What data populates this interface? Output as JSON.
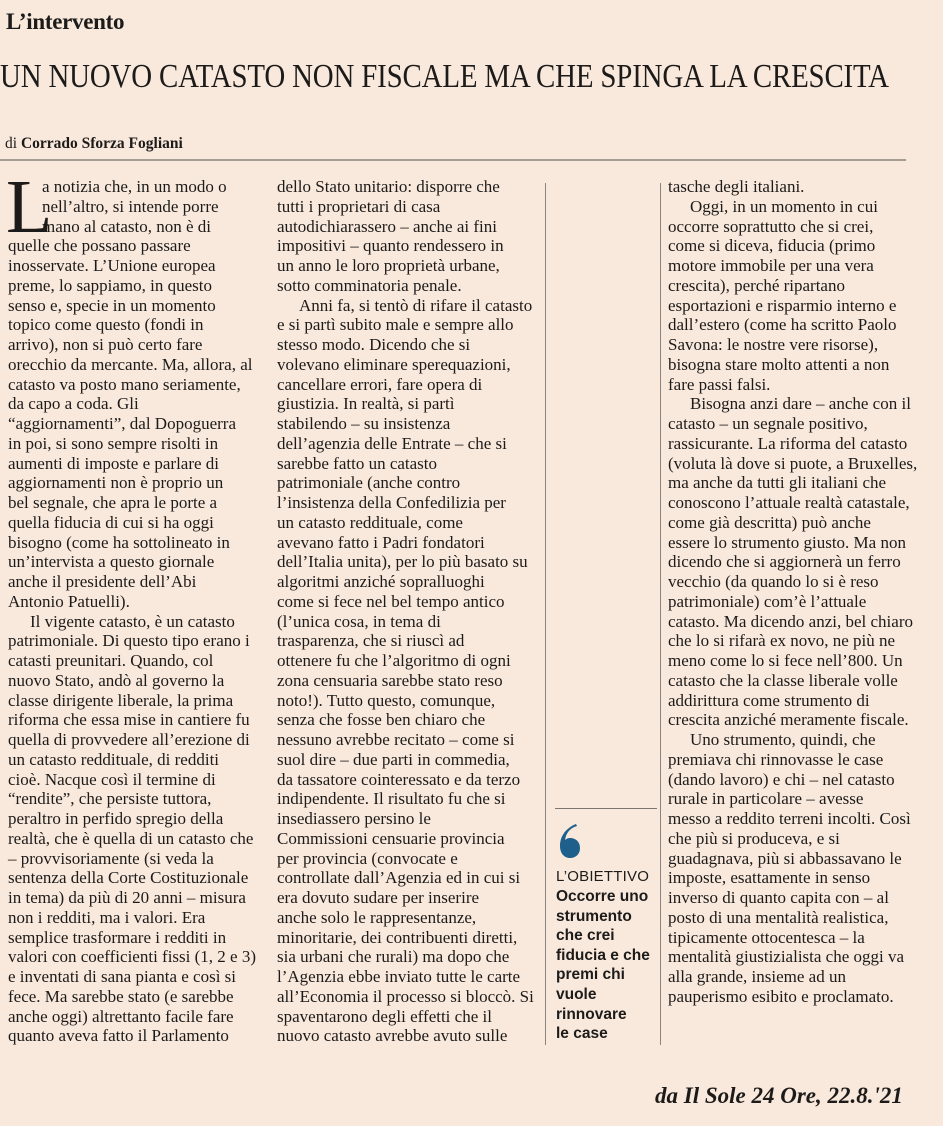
{
  "section": "L’intervento",
  "headline": "UN NUOVO CATASTO NON FISCALE MA CHE SPINGA LA CRESCITA",
  "byline": {
    "prefix": "di",
    "author": "Corrado Sforza Fogliani"
  },
  "drop_cap": "L",
  "columns": [
    [
      [
        "a notizia che, in un modo o",
        "nell’altro, si intende porre",
        "mano al catasto, non è di",
        "quelle che possano passare",
        "inosservate. L’Unione europea",
        "preme, lo sappiamo, in questo",
        "senso e, specie in un momento",
        "topico come questo (fondi in",
        "arrivo), non si può certo fare",
        "orecchio da mercante. Ma, allora, al",
        "catasto va posto mano seriamente,",
        "da capo a coda. Gli",
        "“aggiornamenti”, dal Dopoguerra",
        "in poi, si sono sempre risolti in",
        "aumenti di imposte e parlare di",
        "aggiornamenti non è proprio un",
        "bel segnale, che apra le porte a",
        "quella fiducia di cui si ha oggi",
        "bisogno (come ha sottolineato in",
        "un’intervista a questo giornale",
        "anche il presidente dell’Abi",
        "Antonio Patuelli)."
      ],
      [
        "Il vigente catasto, è un catasto",
        "patrimoniale. Di questo tipo erano i",
        "catasti preunitari. Quando, col",
        "nuovo Stato, andò al governo la",
        "classe dirigente liberale, la prima",
        "riforma che essa mise in cantiere fu",
        "quella di provvedere all’erezione di",
        "un catasto reddituale, di redditi",
        "cioè. Nacque così il termine di",
        "“rendite”, che persiste tuttora,",
        "peraltro in perfido spregio della",
        "realtà, che è quella di un catasto che",
        "– provvisoriamente (si veda la",
        "sentenza della Corte Costituzionale",
        "in tema) da più di 20 anni – misura",
        "non i redditi, ma i valori. Era",
        "semplice trasformare i redditi in",
        "valori con coefficienti fissi (1, 2 e 3)",
        "e inventati di sana pianta e così si",
        "fece. Ma sarebbe stato (e sarebbe",
        "anche oggi) altrettanto facile fare",
        "quanto aveva fatto il Parlamento"
      ]
    ],
    [
      [
        "dello Stato unitario: disporre che",
        "tutti i proprietari di casa",
        "autodichiarassero – anche ai fini",
        "impositivi – quanto rendessero in",
        "un anno le loro proprietà urbane,",
        "sotto comminatoria penale."
      ],
      [
        "Anni fa, si tentò di rifare il catasto",
        "e si partì subito male e sempre allo",
        "stesso modo. Dicendo che si",
        "volevano eliminare sperequazioni,",
        "cancellare errori, fare opera di",
        "giustizia. In realtà, si partì",
        "stabilendo – su insistenza",
        "dell’agenzia delle Entrate – che si",
        "sarebbe fatto un catasto",
        "patrimoniale (anche contro",
        "l’insistenza della Confedilizia per",
        "un catasto reddituale, come",
        "avevano fatto i Padri fondatori",
        "dell’Italia unita), per lo più basato su",
        "algoritmi anziché sopralluoghi",
        "come si fece nel bel tempo antico",
        "(l’unica cosa, in tema di",
        "trasparenza, che si riuscì ad",
        "ottenere fu che l’algoritmo di ogni",
        "zona censuaria sarebbe stato reso",
        "noto!). Tutto questo, comunque,",
        "senza che fosse ben chiaro che",
        "nessuno avrebbe recitato – come si",
        "suol dire – due parti in commedia,",
        "da tassatore cointeressato e da terzo",
        "indipendente. Il risultato fu che si",
        "insediassero persino le",
        "Commissioni censuarie provincia",
        "per provincia (convocate e",
        "controllate dall’Agenzia ed in cui si",
        "era dovuto sudare per inserire",
        "anche solo le rappresentanze,",
        "minoritarie, dei contribuenti diretti,",
        "sia urbani che rurali) ma dopo che",
        "l’Agenzia ebbe inviato tutte le carte",
        "all’Economia il processo si bloccò. Si",
        "spaventarono degli effetti che il",
        "nuovo catasto avrebbe avuto sulle"
      ]
    ],
    [
      [
        "tasche degli italiani."
      ],
      [
        "Oggi, in un momento in cui",
        "occorre soprattutto che si crei,",
        "come si diceva, fiducia (primo",
        "motore immobile per una vera",
        "crescita), perché ripartano",
        "esportazioni e risparmio interno e",
        "dall’estero (come ha scritto Paolo",
        "Savona: le nostre vere risorse),",
        "bisogna stare molto attenti a non",
        "fare passi falsi."
      ],
      [
        "Bisogna anzi dare – anche con il",
        "catasto – un segnale positivo,",
        "rassicurante. La riforma del catasto",
        "(voluta là dove si puote, a Bruxelles,",
        "ma anche da tutti gli italiani che",
        "conoscono l’attuale realtà catastale,",
        "come già descritta) può anche",
        "essere lo strumento giusto. Ma non",
        "dicendo che si aggiornerà un ferro",
        "vecchio (da quando lo si è reso",
        "patrimoniale) com’è l’attuale",
        "catasto. Ma dicendo anzi, bel chiaro",
        "che lo si rifarà ex novo, ne più ne",
        "meno come lo si fece nell’800. Un",
        "catasto che la classe liberale volle",
        "addirittura come strumento di",
        "crescita anziché meramente fiscale."
      ],
      [
        "Uno strumento, quindi, che",
        "premiava chi rinnovasse le case",
        "(dando lavoro) e chi – nel catasto",
        "rurale in particolare – avesse",
        "messo a reddito terreni incolti. Così",
        "che più si produceva, e si",
        "guadagnava, più si abbassavano le",
        "imposte, esattamente in senso",
        "inverso di quanto capita con – al",
        "posto di una mentalità realistica,",
        "tipicamente ottocentesca – la",
        "mentalità giustizialista che oggi va",
        "alla grande, insieme ad un",
        "pauperismo esibito e proclamato."
      ]
    ]
  ],
  "sidebar": {
    "icon": "quote-mark-icon",
    "accent_color": "#1f5f8b",
    "label": "L’OBIETTIVO",
    "lines": [
      "Occorre uno",
      "strumento",
      "che crei",
      "fiducia e che",
      "premi chi",
      "vuole",
      "rinnovare",
      "le case"
    ]
  },
  "source": "da Il Sole 24 Ore, 22.8.'21"
}
